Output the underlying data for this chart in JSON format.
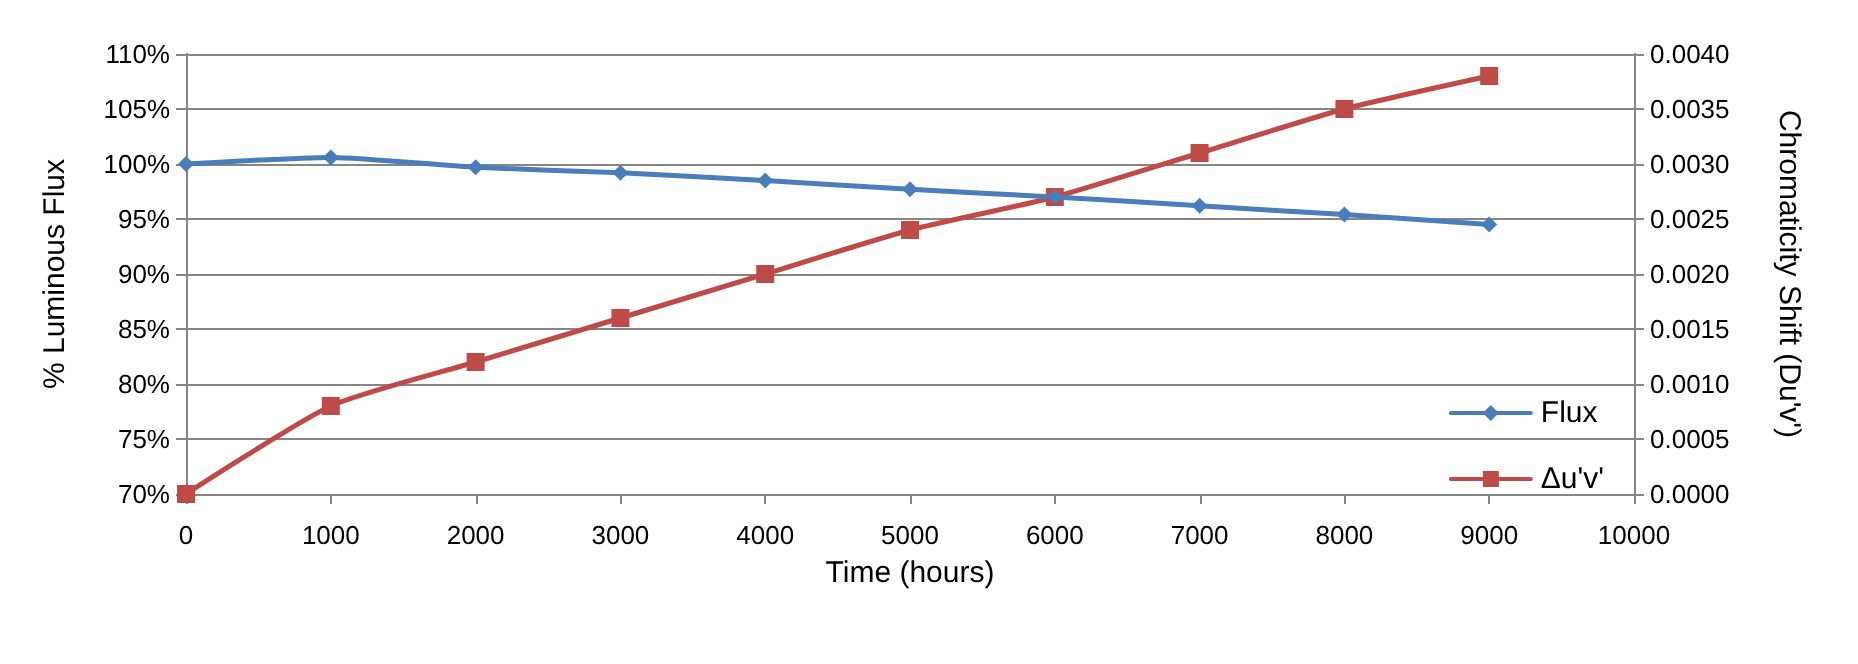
{
  "chart_data": {
    "type": "line",
    "xlabel": "Time (hours)",
    "ylabel": "% Luminous Flux",
    "y2label": "Chromaticity Shift (Du'v')",
    "x": [
      0,
      1000,
      2000,
      3000,
      4000,
      5000,
      6000,
      7000,
      8000,
      9000
    ],
    "series": [
      {
        "name": "Flux",
        "color": "#4a7ebb",
        "marker": "diamond",
        "values": [
          100,
          100.6,
          99.7,
          99.2,
          98.5,
          97.7,
          97.0,
          96.2,
          95.4,
          94.5
        ]
      },
      {
        "name": "Δu'v'",
        "color": "#be4b48",
        "marker": "square",
        "axis": "y2",
        "values": [
          0,
          0.0008,
          0.0012,
          0.0016,
          0.002,
          0.0024,
          0.0027,
          0.0031,
          0.0035,
          0.0038
        ]
      }
    ],
    "xlim": [
      0,
      10000
    ],
    "xticks": [
      0,
      1000,
      2000,
      3000,
      4000,
      5000,
      6000,
      7000,
      8000,
      9000,
      10000
    ],
    "ylim": [
      70,
      110
    ],
    "yticks": [
      {
        "value": 70,
        "label": "70%"
      },
      {
        "value": 75,
        "label": "75%"
      },
      {
        "value": 80,
        "label": "80%"
      },
      {
        "value": 85,
        "label": "85%"
      },
      {
        "value": 90,
        "label": "90%"
      },
      {
        "value": 95,
        "label": "95%"
      },
      {
        "value": 100,
        "label": "100%"
      },
      {
        "value": 105,
        "label": "105%"
      },
      {
        "value": 110,
        "label": "110%"
      }
    ],
    "y2lim": [
      0,
      0.004
    ],
    "y2ticks": [
      {
        "value": 0,
        "label": "0.0000"
      },
      {
        "value": 0.0005,
        "label": "0.0005"
      },
      {
        "value": 0.001,
        "label": "0.0010"
      },
      {
        "value": 0.0015,
        "label": "0.0015"
      },
      {
        "value": 0.002,
        "label": "0.0020"
      },
      {
        "value": 0.0025,
        "label": "0.0025"
      },
      {
        "value": 0.003,
        "label": "0.0030"
      },
      {
        "value": 0.0035,
        "label": "0.0035"
      },
      {
        "value": 0.004,
        "label": "0.0040"
      }
    ],
    "grid": "y",
    "legend": "bottom right",
    "line_style": "solid"
  }
}
